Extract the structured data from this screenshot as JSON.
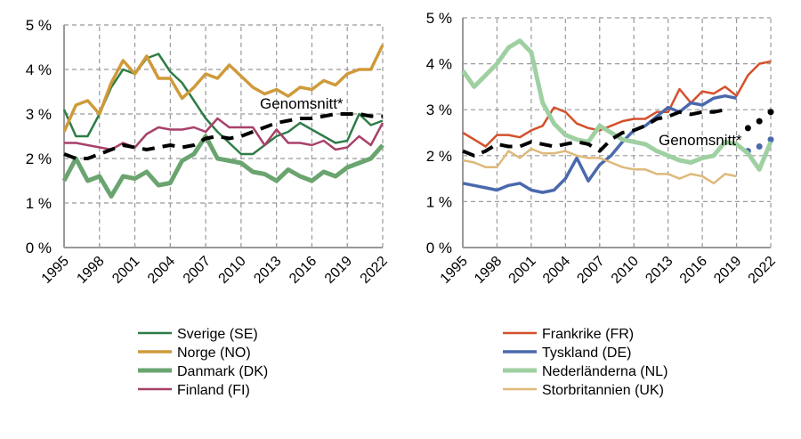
{
  "chart_data": [
    {
      "type": "line",
      "x": [
        1995,
        1996,
        1997,
        1998,
        1999,
        2000,
        2001,
        2002,
        2003,
        2004,
        2005,
        2006,
        2007,
        2008,
        2009,
        2010,
        2011,
        2012,
        2013,
        2014,
        2015,
        2016,
        2017,
        2018,
        2019,
        2020,
        2021,
        2022
      ],
      "x_ticks": [
        "1995",
        "1998",
        "2001",
        "2004",
        "2007",
        "2010",
        "2013",
        "2016",
        "2019",
        "2022"
      ],
      "y_ticks": [
        "0 %",
        "1 %",
        "2 %",
        "3 %",
        "4 %",
        "5 %"
      ],
      "ylim": [
        0,
        5
      ],
      "grid": true,
      "legend": "bottom",
      "annotation": "Genomsnitt*",
      "series": [
        {
          "name": "Sverige (SE)",
          "color": "#2e7d46",
          "width": 2.5,
          "values": [
            3.1,
            2.5,
            2.5,
            3.0,
            3.6,
            4.0,
            3.9,
            4.25,
            4.35,
            3.95,
            3.7,
            3.3,
            2.9,
            2.6,
            2.35,
            2.1,
            2.1,
            2.3,
            2.5,
            2.6,
            2.8,
            2.65,
            2.5,
            2.35,
            2.4,
            3.0,
            2.75,
            2.85
          ]
        },
        {
          "name": "Norge (NO)",
          "color": "#cf9a3a",
          "width": 3.5,
          "values": [
            2.6,
            3.2,
            3.3,
            3.0,
            3.7,
            4.2,
            3.9,
            4.3,
            3.8,
            3.8,
            3.35,
            3.6,
            3.9,
            3.8,
            4.1,
            3.85,
            3.6,
            3.45,
            3.55,
            3.4,
            3.6,
            3.55,
            3.75,
            3.65,
            3.9,
            4.0,
            4.0,
            4.55
          ]
        },
        {
          "name": "Danmark (DK)",
          "color": "#6aa46f",
          "width": 5,
          "values": [
            1.5,
            2.0,
            1.5,
            1.6,
            1.15,
            1.6,
            1.55,
            1.7,
            1.4,
            1.45,
            1.95,
            2.1,
            2.5,
            2.0,
            1.95,
            1.9,
            1.7,
            1.65,
            1.5,
            1.75,
            1.6,
            1.5,
            1.7,
            1.6,
            1.8,
            1.9,
            2.0,
            2.3
          ]
        },
        {
          "name": "Finland (FI)",
          "color": "#a8416a",
          "width": 2.5,
          "values": [
            2.35,
            2.35,
            2.3,
            2.25,
            2.2,
            2.35,
            2.25,
            2.55,
            2.7,
            2.65,
            2.65,
            2.7,
            2.6,
            2.9,
            2.7,
            2.7,
            2.7,
            2.3,
            2.65,
            2.35,
            2.35,
            2.3,
            2.4,
            2.2,
            2.25,
            2.5,
            2.3,
            2.8
          ]
        }
      ],
      "average": {
        "color": "#000000",
        "values": [
          2.1,
          2.0,
          2.0,
          2.1,
          2.2,
          2.3,
          2.25,
          2.2,
          2.25,
          2.3,
          2.25,
          2.3,
          2.45,
          2.5,
          2.45,
          2.5,
          2.6,
          2.7,
          2.8,
          2.85,
          2.9,
          2.9,
          2.95,
          3.0,
          3.0,
          3.0,
          2.95,
          2.95
        ]
      }
    },
    {
      "type": "line",
      "x": [
        1995,
        1996,
        1997,
        1998,
        1999,
        2000,
        2001,
        2002,
        2003,
        2004,
        2005,
        2006,
        2007,
        2008,
        2009,
        2010,
        2011,
        2012,
        2013,
        2014,
        2015,
        2016,
        2017,
        2018,
        2019,
        2020,
        2021,
        2022
      ],
      "x_ticks": [
        "1995",
        "1998",
        "2001",
        "2004",
        "2007",
        "2010",
        "2013",
        "2016",
        "2019",
        "2022"
      ],
      "y_ticks": [
        "0 %",
        "1 %",
        "2 %",
        "3 %",
        "4 %",
        "5 %"
      ],
      "ylim": [
        0,
        5
      ],
      "grid": true,
      "legend": "bottom",
      "annotation": "Genomsnitt*",
      "series": [
        {
          "name": "Frankrike (FR)",
          "color": "#d4502b",
          "width": 2.5,
          "values": [
            2.5,
            2.35,
            2.2,
            2.45,
            2.45,
            2.4,
            2.55,
            2.65,
            3.05,
            2.95,
            2.7,
            2.6,
            2.55,
            2.65,
            2.75,
            2.8,
            2.8,
            2.95,
            2.95,
            3.45,
            3.15,
            3.4,
            3.35,
            3.5,
            3.3,
            3.75,
            4.0,
            4.05
          ]
        },
        {
          "name": "Tyskland (DE)",
          "color": "#4a69ad",
          "width": 3.5,
          "values": [
            1.4,
            1.35,
            1.3,
            1.25,
            1.35,
            1.4,
            1.25,
            1.2,
            1.25,
            1.5,
            1.95,
            1.45,
            1.8,
            2.0,
            2.3,
            2.55,
            2.65,
            2.85,
            3.05,
            2.95,
            3.15,
            3.1,
            3.25,
            3.3,
            3.25,
            2.1,
            2.2,
            2.35
          ],
          "dotted_from": 2020
        },
        {
          "name": "Nederländerna (NL)",
          "color": "#9fd0a2",
          "width": 5,
          "values": [
            3.85,
            3.5,
            3.75,
            4.0,
            4.35,
            4.5,
            4.25,
            3.15,
            2.7,
            2.45,
            2.35,
            2.3,
            2.65,
            2.5,
            2.35,
            2.3,
            2.25,
            2.1,
            2.0,
            1.9,
            1.85,
            1.95,
            2.0,
            2.3,
            2.25,
            2.05,
            1.7,
            2.3
          ]
        },
        {
          "name": "Storbritannien (UK)",
          "color": "#dfb97c",
          "width": 2.5,
          "values": [
            1.9,
            1.85,
            1.75,
            1.75,
            2.1,
            1.95,
            2.15,
            2.05,
            2.05,
            2.1,
            2.0,
            1.95,
            1.95,
            1.85,
            1.75,
            1.7,
            1.7,
            1.6,
            1.6,
            1.5,
            1.6,
            1.55,
            1.4,
            1.6,
            1.55,
            null,
            null,
            null
          ]
        }
      ],
      "average": {
        "color": "#000000",
        "values": [
          2.1,
          2.0,
          2.1,
          2.25,
          2.2,
          2.2,
          2.3,
          2.25,
          2.2,
          2.25,
          2.3,
          2.25,
          2.1,
          2.35,
          2.5,
          2.55,
          2.65,
          2.8,
          2.85,
          2.95,
          2.9,
          2.95,
          2.95,
          3.0,
          null,
          2.6,
          2.75,
          2.95
        ],
        "dotted_from": 2020
      }
    }
  ]
}
